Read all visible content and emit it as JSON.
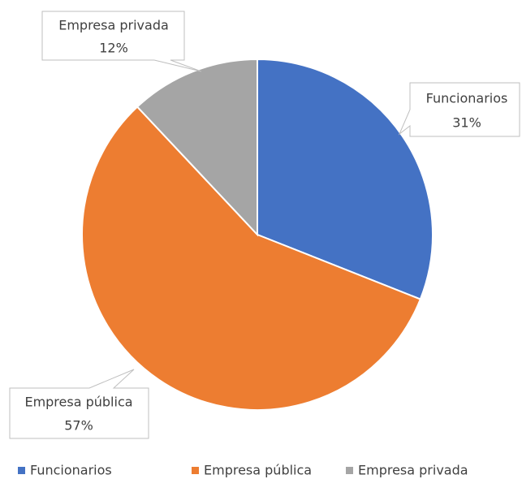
{
  "chart_data": {
    "type": "pie",
    "categories": [
      "Funcionarios",
      "Empresa pública",
      "Empresa privada"
    ],
    "values": [
      31,
      57,
      12
    ],
    "value_labels": [
      "31%",
      "57%",
      "12%"
    ],
    "colors": [
      "#4472c4",
      "#ed7d31",
      "#a5a5a5"
    ],
    "legend": "bottom"
  }
}
